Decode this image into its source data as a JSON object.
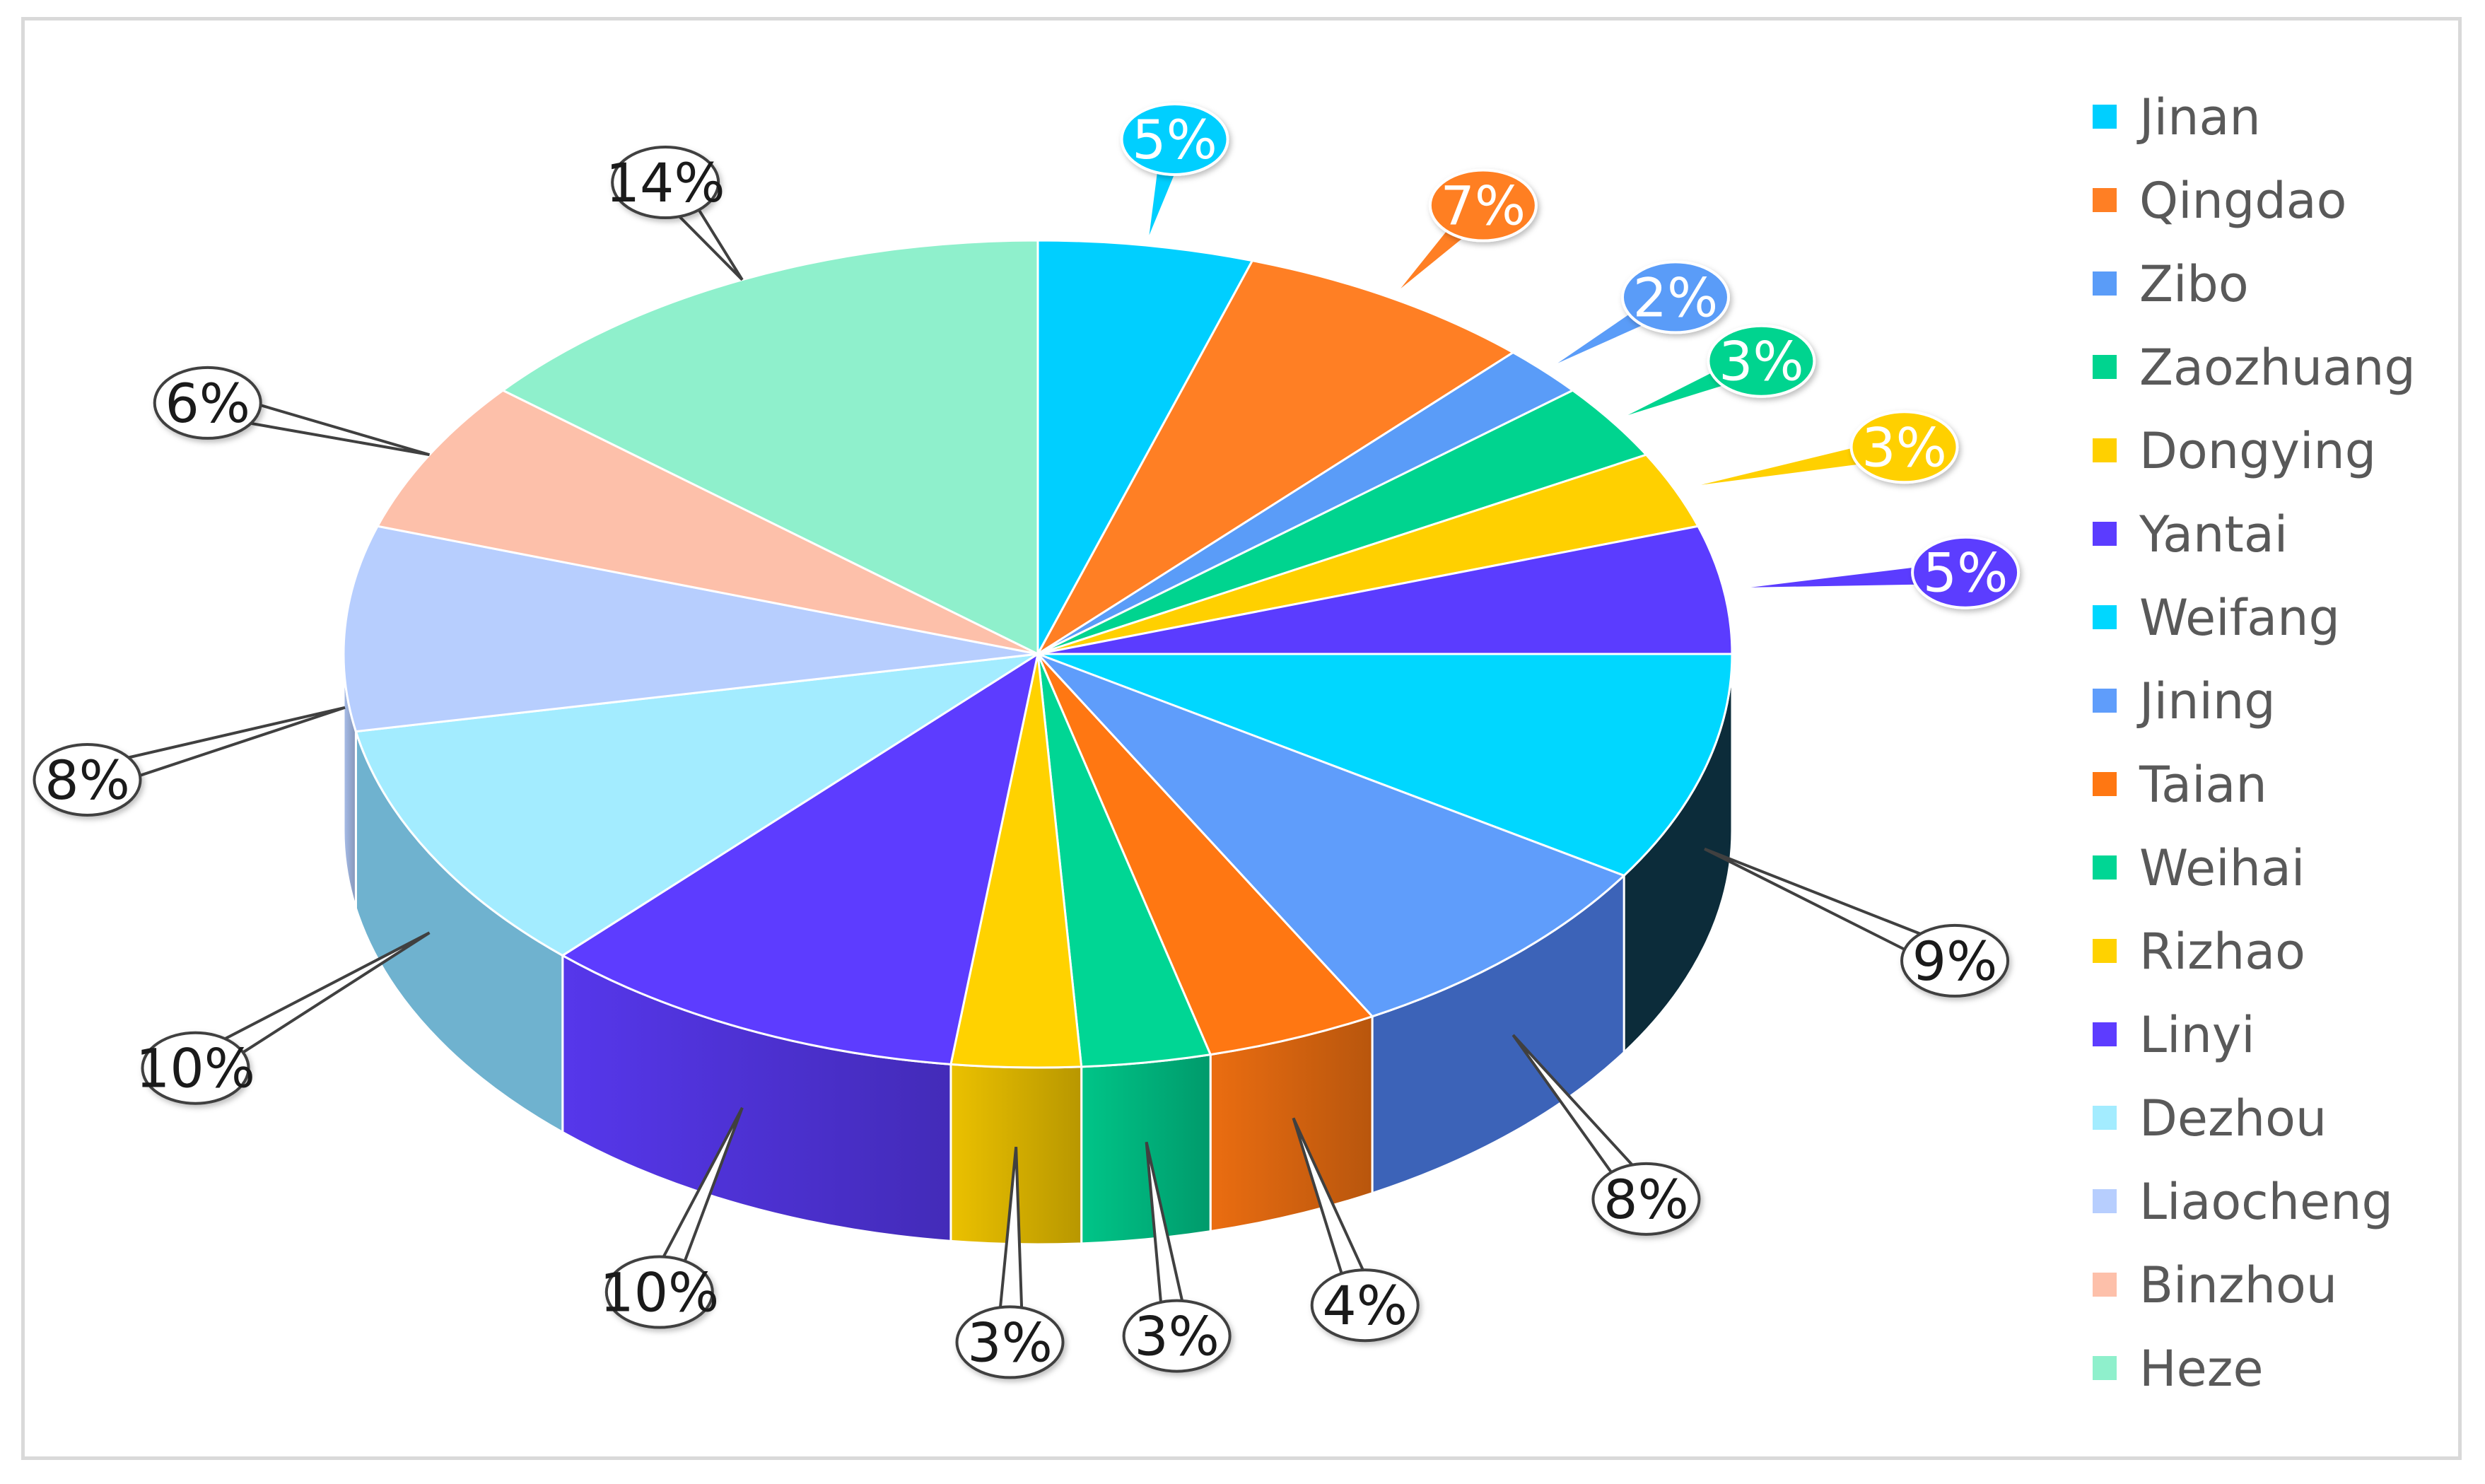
{
  "chart_data": {
    "type": "pie",
    "style": "3d",
    "legend_position": "right",
    "title": "",
    "slices": [
      {
        "label": "Jinan",
        "value": 5,
        "color": "#00cfff"
      },
      {
        "label": "Qingdao",
        "value": 7,
        "color": "#ff7f24"
      },
      {
        "label": "Zibo",
        "value": 2,
        "color": "#5a9cf8"
      },
      {
        "label": "Zaozhuang",
        "value": 3,
        "color": "#00d48f"
      },
      {
        "label": "Dongying",
        "value": 3,
        "color": "#ffd000"
      },
      {
        "label": "Yantai",
        "value": 5,
        "color": "#5b3cff"
      },
      {
        "label": "Weifang",
        "value": 9,
        "color": "#00d7ff"
      },
      {
        "label": "Jining",
        "value": 8,
        "color": "#5f9dfb"
      },
      {
        "label": "Taian",
        "value": 4,
        "color": "#ff7712"
      },
      {
        "label": "Weihai",
        "value": 3,
        "color": "#00d694"
      },
      {
        "label": "Rizhao",
        "value": 3,
        "color": "#ffd200"
      },
      {
        "label": "Linyi",
        "value": 10,
        "color": "#5d3cff"
      },
      {
        "label": "Dezhou",
        "value": 10,
        "color": "#a3ecff"
      },
      {
        "label": "Liaocheng",
        "value": 8,
        "color": "#b7cefe"
      },
      {
        "label": "Binzhou",
        "value": 6,
        "color": "#fdc0aa"
      },
      {
        "label": "Heze",
        "value": 14,
        "color": "#8ff0cc"
      }
    ],
    "data_labels": [
      "5%",
      "7%",
      "2%",
      "3%",
      "3%",
      "5%",
      "9%",
      "8%",
      "4%",
      "3%",
      "3%",
      "10%",
      "10%",
      "8%",
      "6%",
      "14%"
    ],
    "colored_callouts": [
      "Jinan",
      "Qingdao",
      "Zibo",
      "Zaozhuang",
      "Dongying",
      "Yantai"
    ]
  }
}
